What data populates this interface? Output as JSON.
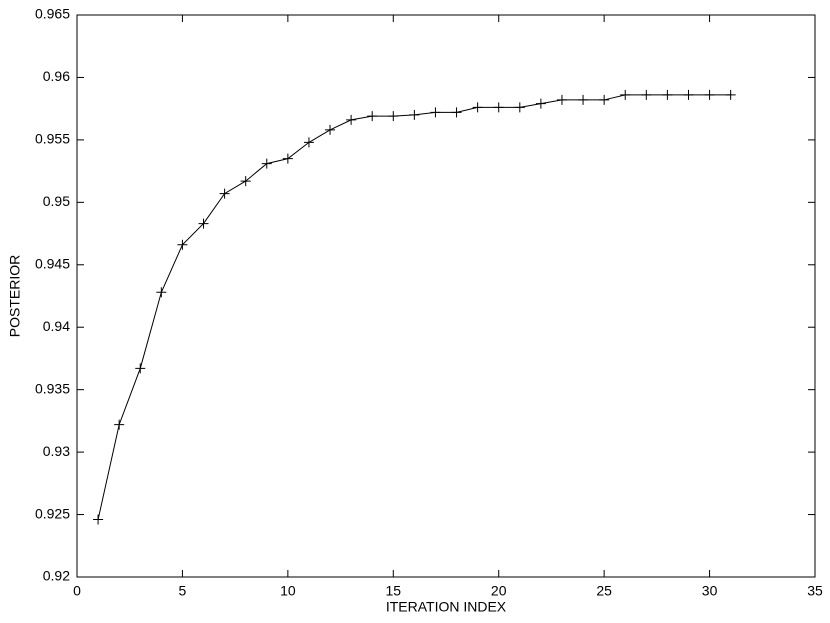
{
  "chart_data": {
    "type": "line",
    "xlabel": "ITERATION INDEX",
    "ylabel": "POSTERIOR",
    "x": [
      1,
      2,
      3,
      4,
      5,
      6,
      7,
      8,
      9,
      10,
      11,
      12,
      13,
      14,
      15,
      16,
      17,
      18,
      19,
      20,
      21,
      22,
      23,
      24,
      25,
      26,
      27,
      28,
      29,
      30,
      31
    ],
    "values": [
      0.9246,
      0.9322,
      0.9367,
      0.9428,
      0.9466,
      0.9483,
      0.9507,
      0.9517,
      0.9531,
      0.9535,
      0.9548,
      0.9558,
      0.9566,
      0.9569,
      0.9569,
      0.957,
      0.9572,
      0.9572,
      0.9576,
      0.9576,
      0.9576,
      0.9579,
      0.9582,
      0.9582,
      0.9582,
      0.9586,
      0.9586,
      0.9586,
      0.9586,
      0.9586,
      0.9586
    ],
    "color": "#000000",
    "marker": "+",
    "xlim": [
      0,
      35
    ],
    "xticks": [
      0,
      5,
      10,
      15,
      20,
      25,
      30,
      35
    ],
    "ylim": [
      0.92,
      0.965
    ],
    "yticks": [
      0.92,
      0.925,
      0.93,
      0.935,
      0.94,
      0.945,
      0.95,
      0.955,
      0.96,
      0.965
    ],
    "grid": false
  }
}
